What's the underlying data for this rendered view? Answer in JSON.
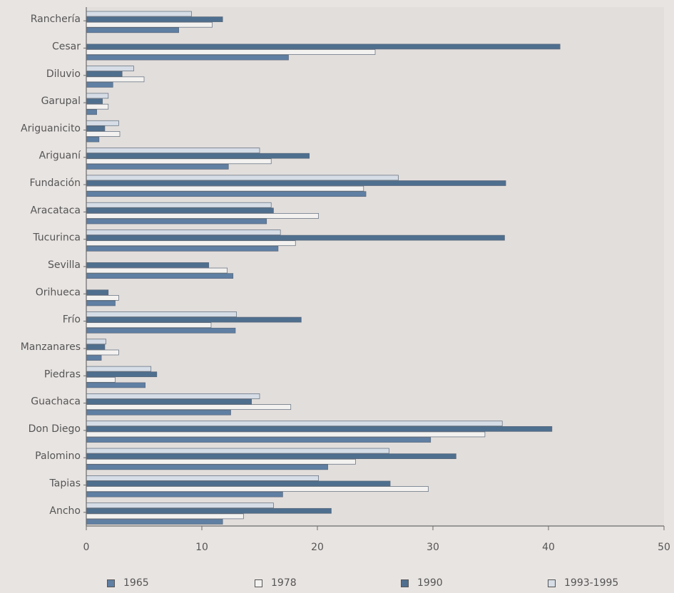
{
  "colors": {
    "background": "#e8e4e2",
    "plot_background": "#e2dedc",
    "axis": "#6b6b6b",
    "text": "#555555"
  },
  "chart_data": {
    "type": "bar",
    "orientation": "horizontal",
    "categories": [
      "Ranchería",
      "Cesar",
      "Diluvio",
      "Garupal",
      "Ariguanicito",
      "Ariguaní",
      "Fundación",
      "Aracataca",
      "Tucurinca",
      "Sevilla",
      "Orihueca",
      "Frío",
      "Manzanares",
      "Piedras",
      "Guachaca",
      "Don Diego",
      "Palomino",
      "Tapias",
      "Ancho"
    ],
    "series": [
      {
        "name": "1993-1995",
        "color": "#d6dde6",
        "values": [
          9.1,
          null,
          4.1,
          1.9,
          2.8,
          15.0,
          27.0,
          16.0,
          16.8,
          null,
          null,
          13.0,
          1.7,
          5.6,
          15.0,
          36.0,
          26.2,
          20.1,
          16.2
        ]
      },
      {
        "name": "1990",
        "color": "#4f6f8f",
        "values": [
          11.8,
          41.0,
          3.1,
          1.4,
          1.6,
          19.3,
          36.3,
          16.2,
          36.2,
          10.6,
          1.9,
          18.6,
          1.6,
          6.1,
          14.3,
          40.3,
          32.0,
          26.3,
          21.2
        ]
      },
      {
        "name": "1978",
        "color": "#f4f2f0",
        "values": [
          10.9,
          25.0,
          5.0,
          1.9,
          2.9,
          16.0,
          24.0,
          20.1,
          18.1,
          12.2,
          2.8,
          10.8,
          2.8,
          2.5,
          17.7,
          34.5,
          23.3,
          29.6,
          13.6
        ]
      },
      {
        "name": "1965",
        "color": "#5f7fa3",
        "values": [
          8.0,
          17.5,
          2.3,
          0.9,
          1.1,
          12.3,
          24.2,
          15.6,
          16.6,
          12.7,
          2.5,
          12.9,
          1.3,
          5.1,
          12.5,
          29.8,
          20.9,
          17.0,
          11.8
        ]
      }
    ],
    "x_ticks": [
      "0",
      "10",
      "20",
      "30",
      "40",
      "50"
    ],
    "xlim": [
      0,
      50
    ],
    "grid": false,
    "legend_position": "bottom"
  },
  "legend": [
    {
      "label": "1965",
      "color": "#5f7fa3"
    },
    {
      "label": "1978",
      "color": "#f4f2f0"
    },
    {
      "label": "1990",
      "color": "#4f6f8f"
    },
    {
      "label": "1993-1995",
      "color": "#d6dde6"
    }
  ]
}
